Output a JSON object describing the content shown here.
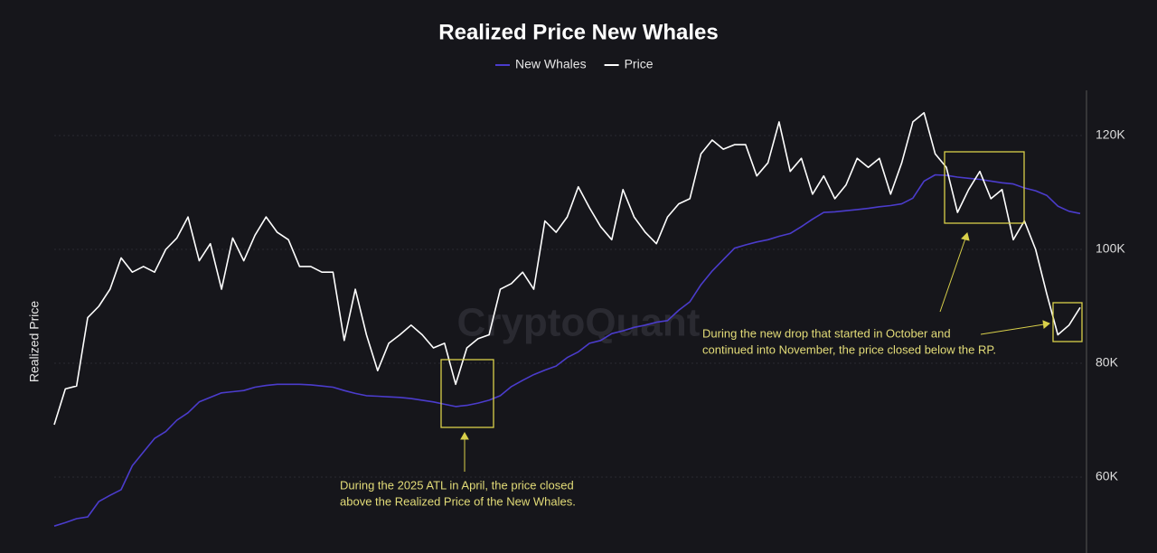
{
  "chart_data": {
    "type": "line",
    "title": "Realized Price New Whales",
    "y_label": "Realized Price",
    "watermark": "CryptoQuant",
    "annotations": [
      [
        "During the 2025 ATL in April, the price closed",
        "above the Realized Price of the New Whales."
      ],
      [
        "During the new drop that started in October and",
        "continued into November, the price closed below the RP."
      ]
    ],
    "ylim": [
      47000,
      128000
    ],
    "yticks": [
      {
        "value": 60000,
        "label": "60K"
      },
      {
        "value": 80000,
        "label": "80K"
      },
      {
        "value": 100000,
        "label": "100K"
      },
      {
        "value": 120000,
        "label": "120K"
      }
    ],
    "grid": true,
    "series": [
      {
        "name": "New Whales",
        "color": "#4b3ccc",
        "values": [
          51400,
          52000,
          52700,
          53000,
          55700,
          56800,
          57800,
          62000,
          64400,
          66800,
          68000,
          70000,
          71300,
          73200,
          74000,
          74800,
          75000,
          75200,
          75800,
          76100,
          76300,
          76300,
          76300,
          76200,
          76000,
          75800,
          75200,
          74700,
          74300,
          74200,
          74100,
          74000,
          73800,
          73500,
          73200,
          72800,
          72400,
          72600,
          73000,
          73500,
          74300,
          75900,
          77000,
          78000,
          78800,
          79500,
          81000,
          82000,
          83500,
          84000,
          85200,
          85700,
          86300,
          86700,
          87200,
          87500,
          89300,
          90800,
          93800,
          96200,
          98200,
          100200,
          100800,
          101300,
          101700,
          102300,
          102800,
          104000,
          105300,
          106500,
          106600,
          106800,
          107000,
          107200,
          107500,
          107700,
          108000,
          109000,
          112000,
          113100,
          113000,
          112700,
          112500,
          112300,
          112000,
          111700,
          111500,
          110800,
          110300,
          109500,
          107600,
          106700,
          106300
        ]
      },
      {
        "name": "Price",
        "color": "#ffffff",
        "values": [
          69200,
          75500,
          76000,
          88000,
          90000,
          93000,
          98500,
          96000,
          97000,
          96000,
          100000,
          102000,
          105700,
          98000,
          101000,
          93000,
          102000,
          98000,
          102500,
          105700,
          103000,
          101700,
          97000,
          97000,
          96000,
          96000,
          84000,
          93000,
          85000,
          78700,
          83500,
          85000,
          86700,
          85000,
          82700,
          83500,
          76300,
          82700,
          84300,
          85000,
          93000,
          94000,
          96000,
          93000,
          105000,
          103000,
          105700,
          111000,
          107300,
          104000,
          101700,
          110500,
          105700,
          103000,
          101000,
          105700,
          108000,
          108900,
          116800,
          119200,
          117600,
          118400,
          118400,
          112900,
          115200,
          122400,
          113700,
          116000,
          109700,
          112900,
          108900,
          111300,
          116000,
          114400,
          116000,
          109700,
          115200,
          122400,
          124000,
          116800,
          114400,
          106500,
          110500,
          113700,
          108900,
          110500,
          101700,
          105000,
          100000,
          92200,
          85000,
          86700,
          89800
        ]
      }
    ]
  }
}
